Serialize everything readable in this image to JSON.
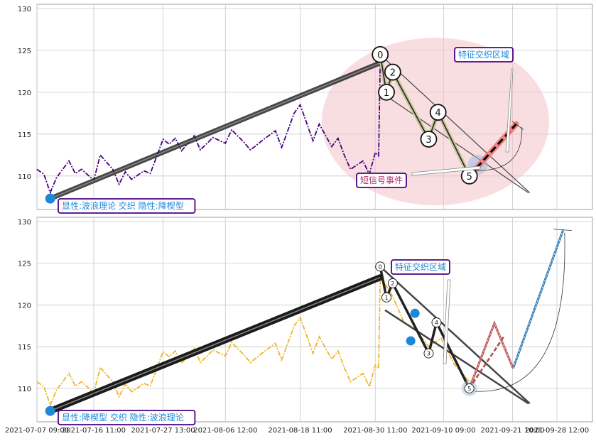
{
  "chart_data": [
    {
      "type": "line",
      "panel": "top",
      "ylim": [
        106,
        130.5
      ],
      "yticks": [
        110,
        115,
        120,
        125,
        130
      ],
      "series": [
        {
          "style": "dash-dot",
          "color": "#4b0082",
          "x": [
            "2021-07-07 09:00",
            "2021-07-08 12:00",
            "2021-07-09 12:00",
            "2021-07-10 12:00",
            "2021-07-12 12:00",
            "2021-07-13 12:00",
            "2021-07-14 12:00",
            "2021-07-16 11:00",
            "2021-07-17 12:00",
            "2021-07-19 12:00",
            "2021-07-20 12:00",
            "2021-07-21 12:00",
            "2021-07-22 12:00",
            "2021-07-24 12:00",
            "2021-07-25 12:00",
            "2021-07-27 13:00",
            "2021-07-28 12:00",
            "2021-07-29 12:00",
            "2021-07-30 12:00",
            "2021-08-01 12:00",
            "2021-08-02 12:00",
            "2021-08-04 12:00",
            "2021-08-06 12:00",
            "2021-08-07 12:00",
            "2021-08-09 12:00",
            "2021-08-10 12:00",
            "2021-08-12 12:00",
            "2021-08-14 12:00",
            "2021-08-15 12:00",
            "2021-08-17 12:00",
            "2021-08-18 11:00",
            "2021-08-20 12:00",
            "2021-08-21 12:00",
            "2021-08-23 12:00",
            "2021-08-24 12:00",
            "2021-08-25 12:00",
            "2021-08-26 12:00",
            "2021-08-28 12:00",
            "2021-08-29 12:00",
            "2021-08-30 11:00",
            "2021-08-31 00:00",
            "2021-08-31 06:00"
          ],
          "values": [
            110.8,
            110.2,
            108.0,
            109.8,
            111.8,
            110.3,
            110.8,
            109.5,
            112.5,
            110.8,
            109.0,
            110.5,
            109.6,
            110.6,
            110.3,
            114.4,
            113.8,
            114.5,
            113.0,
            114.8,
            113.1,
            114.6,
            113.9,
            115.5,
            114.0,
            113.1,
            114.3,
            115.4,
            113.4,
            117.5,
            118.5,
            114.2,
            116.2,
            113.5,
            114.5,
            112.5,
            110.8,
            111.8,
            110.2,
            112.8,
            112.4,
            123.5
          ]
        }
      ],
      "wave": {
        "start": {
          "x": "2021-07-09 12:00",
          "y": 107.3
        },
        "peak": {
          "x": "2021-08-31 06:00",
          "y": 123.5
        },
        "points": [
          {
            "label": "0",
            "x": "2021-08-31 06:00",
            "y": 124.5
          },
          {
            "label": "1",
            "x": "2021-09-01 06:00",
            "y": 120.0
          },
          {
            "label": "2",
            "x": "2021-09-02 06:00",
            "y": 122.4
          },
          {
            "label": "3",
            "x": "2021-09-08 00:00",
            "y": 114.4
          },
          {
            "label": "4",
            "x": "2021-09-09 12:00",
            "y": 117.6
          },
          {
            "label": "5",
            "x": "2021-09-14 12:00",
            "y": 110.0
          }
        ],
        "forecast_to": {
          "x": "2021-09-22 00:00",
          "y": 116.2
        }
      },
      "annotations": [
        "显性:波浪理论 交织 隐性:降楔型",
        "特征交织区域",
        "短信号事件"
      ]
    },
    {
      "type": "line",
      "panel": "bottom",
      "ylim": [
        106,
        130.5
      ],
      "yticks": [
        110,
        115,
        120,
        125,
        130
      ],
      "series": [
        {
          "style": "dash-dot",
          "color": "#f0b429",
          "x": [
            "2021-07-07 09:00",
            "2021-07-08 12:00",
            "2021-07-09 12:00",
            "2021-07-10 12:00",
            "2021-07-12 12:00",
            "2021-07-13 12:00",
            "2021-07-14 12:00",
            "2021-07-16 11:00",
            "2021-07-17 12:00",
            "2021-07-19 12:00",
            "2021-07-20 12:00",
            "2021-07-21 12:00",
            "2021-07-22 12:00",
            "2021-07-24 12:00",
            "2021-07-25 12:00",
            "2021-07-27 13:00",
            "2021-07-28 12:00",
            "2021-07-29 12:00",
            "2021-07-30 12:00",
            "2021-08-01 12:00",
            "2021-08-02 12:00",
            "2021-08-04 12:00",
            "2021-08-06 12:00",
            "2021-08-07 12:00",
            "2021-08-09 12:00",
            "2021-08-10 12:00",
            "2021-08-12 12:00",
            "2021-08-14 12:00",
            "2021-08-15 12:00",
            "2021-08-17 12:00",
            "2021-08-18 11:00",
            "2021-08-20 12:00",
            "2021-08-21 12:00",
            "2021-08-23 12:00",
            "2021-08-24 12:00",
            "2021-08-25 12:00",
            "2021-08-26 12:00",
            "2021-08-28 12:00",
            "2021-08-29 12:00",
            "2021-08-30 11:00",
            "2021-08-31 00:00",
            "2021-08-31 06:00",
            "2021-09-02 06:00",
            "2021-09-04 00:00",
            "2021-09-06 00:00",
            "2021-09-08 00:00",
            "2021-09-10 00:00",
            "2021-09-12 00:00",
            "2021-09-14 12:00"
          ],
          "values": [
            110.8,
            110.2,
            108.0,
            109.8,
            111.8,
            110.3,
            110.8,
            109.5,
            112.5,
            110.8,
            109.0,
            110.5,
            109.6,
            110.6,
            110.3,
            114.4,
            113.8,
            114.5,
            113.0,
            114.8,
            113.1,
            114.6,
            113.9,
            115.5,
            114.0,
            113.1,
            114.3,
            115.4,
            113.4,
            117.5,
            118.5,
            114.2,
            116.2,
            113.5,
            114.5,
            112.5,
            110.8,
            111.8,
            110.2,
            112.8,
            112.4,
            123.5,
            121.0,
            118.0,
            117.0,
            115.0,
            116.0,
            113.0,
            110.8
          ]
        }
      ],
      "wave": {
        "start": {
          "x": "2021-07-09 12:00",
          "y": 107.3
        },
        "peak": {
          "x": "2021-08-31 06:00",
          "y": 123.3
        },
        "points": [
          {
            "label": "0",
            "x": "2021-08-31 06:00",
            "y": 124.6
          },
          {
            "label": "1",
            "x": "2021-09-01 06:00",
            "y": 120.9
          },
          {
            "label": "2",
            "x": "2021-09-02 06:00",
            "y": 122.6
          },
          {
            "label": "3",
            "x": "2021-09-08 00:00",
            "y": 114.2
          },
          {
            "label": "4",
            "x": "2021-09-09 06:00",
            "y": 117.9
          },
          {
            "label": "5",
            "x": "2021-09-14 12:00",
            "y": 110.0
          }
        ],
        "forecast_to": {
          "x": "2021-09-29 12:00",
          "y": 129.0
        }
      },
      "annotations": [
        "显性:降楔型 交织 隐性:波浪理论",
        "特征交织区域"
      ]
    }
  ],
  "x_axis": {
    "tick_labels": [
      "2021-07-07 09:00",
      "2021-07-16 11:00",
      "2021-07-27 13:00",
      "2021-08-06 12:00",
      "2021-08-18 11:00",
      "2021-08-30 11:00",
      "2021-09-10 09:00",
      "2021-09-21 10:00",
      "2021-09-28 12:00"
    ]
  },
  "colors": {
    "grid": "#c8c8c8",
    "wave_line": "#3a3a3a",
    "point_fill": "#1f88d6",
    "zone_fill": "#f2c2c8",
    "label_border": "#4b0082",
    "label_text": "#1f88d6",
    "event_text": "#b0306a",
    "forecast_red": "#f08080",
    "forecast_blue": "#3a9ad9"
  }
}
